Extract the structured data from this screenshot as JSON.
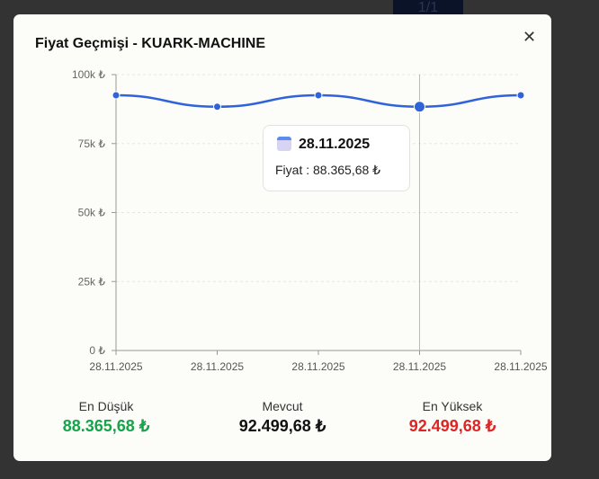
{
  "background_tab": "1/1",
  "modal": {
    "title": "Fiyat Geçmişi - KUARK-MACHINE",
    "close_icon": "close-icon"
  },
  "chart_data": {
    "type": "line",
    "x": [
      "28.11.2025",
      "28.11.2025",
      "28.11.2025",
      "28.11.2025",
      "28.11.2025"
    ],
    "values": [
      92499.68,
      88365.68,
      92499.68,
      88365.68,
      92499.68
    ],
    "yticks": [
      "0 ₺",
      "25k ₺",
      "50k ₺",
      "75k ₺",
      "100k ₺"
    ],
    "ylim": [
      0,
      100000
    ],
    "grid": true,
    "color": "#2f63d9"
  },
  "tooltip": {
    "date": "28.11.2025",
    "price": "Fiyat : 88.365,68 ₺",
    "icon": "calendar-icon"
  },
  "stats": [
    {
      "label": "En Düşük",
      "value": "88.365,68 ₺",
      "color": "#16a34a"
    },
    {
      "label": "Mevcut",
      "value": "92.499,68 ₺",
      "color": "#111111"
    },
    {
      "label": "En Yüksek",
      "value": "92.499,68 ₺",
      "color": "#dc2626"
    }
  ]
}
